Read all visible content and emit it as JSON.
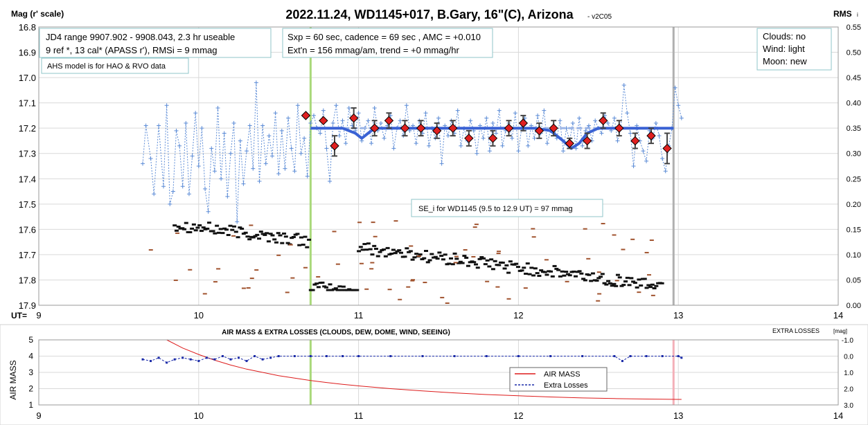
{
  "top": {
    "title": "2022.11.24, WD1145+017, B.Gary, 16\"(C), Arizona",
    "version": "- v2C05",
    "y_left_label": "Mag (r' scale)",
    "y_right_label": "RMS",
    "y_right_label_sub": "i",
    "x_prefix": "UT=",
    "annot1_l1": "JD4 range 9907.902 - 9908.043, 2.3 hr useable",
    "annot1_l2": " 9 ref *, 13 cal*  (APASS r'), RMSi = 9 mmag",
    "annot2": "AHS model is for HAO & RVO data",
    "annot3_l1": "Sxp = 60 sec, cadence = 69 sec , AMC = +0.010",
    "annot3_l2": "Ext'n = 156 mmag/am, trend = +0 mmag/hr",
    "annot4_l1": "Clouds: no",
    "annot4_l2": "Wind:  light",
    "annot4_l3": "Moon:  new",
    "annot5": "SE_i for WD1145 (9.5 to 12.9 UT) = 97 mmag"
  },
  "bottom": {
    "title": "AIR MASS & EXTRA LOSSES (CLOUDS, DEW, DOME, WIND, SEEING)",
    "y_left_label": "AIR MASS",
    "y_right_label": "EXTRA LOSSES",
    "y_right_unit": "[mag]",
    "legend": [
      "AIR MASS",
      "Extra Losses"
    ]
  },
  "colors": {
    "mag": "#5b8bd6",
    "binned": "#e02020",
    "model": "#3a62d4",
    "rms_black": "#111111",
    "rms_brown": "#a0522d",
    "ingress_line": "#a9d97a",
    "egress_line": "#b0b0b0",
    "airmass": "#dd1a1a",
    "losses": "#1a2aa8"
  },
  "chart_data": [
    {
      "type": "scatter",
      "title": "2022.11.24, WD1145+017, B.Gary, 16\"(C), Arizona",
      "xlabel": "UT=",
      "ylabel": "Mag (r' scale)",
      "y2label": "RMS i",
      "xlim": [
        9,
        14
      ],
      "ylim": [
        17.9,
        16.8
      ],
      "y2lim": [
        0,
        0.55
      ],
      "x_ticks": [
        9,
        10,
        11,
        12,
        13,
        14
      ],
      "y_ticks": [
        "16.8",
        "16.9",
        "17.0",
        "17.1",
        "17.2",
        "17.3",
        "17.4",
        "17.5",
        "17.6",
        "17.7",
        "17.8",
        "17.9"
      ],
      "y2_ticks": [
        "0.55",
        "0.50",
        "0.45",
        "0.40",
        "0.35",
        "0.30",
        "0.25",
        "0.20",
        "0.15",
        "0.10",
        "0.05",
        "0.00"
      ],
      "vertical_lines": [
        10.7,
        12.97
      ],
      "series": [
        {
          "name": "",
          "x": [
            9.65,
            9.67,
            9.7,
            9.72,
            9.75,
            9.78,
            9.8,
            9.82,
            9.84,
            9.86,
            9.88,
            9.9,
            9.92,
            9.94,
            9.96,
            9.98,
            10.0,
            10.02,
            10.04,
            10.06,
            10.08,
            10.1,
            10.12,
            10.14,
            10.16,
            10.18,
            10.2,
            10.22,
            10.24,
            10.26,
            10.28,
            10.3,
            10.32,
            10.34,
            10.36,
            10.38,
            10.4,
            10.42,
            10.44,
            10.46,
            10.48,
            10.5,
            10.52,
            10.54,
            10.56,
            10.58,
            10.6,
            10.62,
            10.64,
            10.66,
            10.68,
            10.7,
            10.72,
            10.74,
            10.76,
            10.78,
            10.8,
            10.82,
            10.84,
            10.86,
            10.88,
            10.9,
            10.92,
            10.94,
            10.96,
            10.98,
            11.0,
            11.02,
            11.04,
            11.06,
            11.08,
            11.1,
            11.12,
            11.14,
            11.16,
            11.18,
            11.2,
            11.22,
            11.24,
            11.26,
            11.28,
            11.3,
            11.32,
            11.34,
            11.36,
            11.38,
            11.4,
            11.42,
            11.44,
            11.46,
            11.48,
            11.5,
            11.52,
            11.54,
            11.56,
            11.58,
            11.6,
            11.62,
            11.64,
            11.66,
            11.68,
            11.7,
            11.72,
            11.74,
            11.76,
            11.78,
            11.8,
            11.82,
            11.84,
            11.86,
            11.88,
            11.9,
            11.92,
            11.94,
            11.96,
            11.98,
            12.0,
            12.02,
            12.04,
            12.06,
            12.08,
            12.1,
            12.12,
            12.14,
            12.16,
            12.18,
            12.2,
            12.22,
            12.24,
            12.26,
            12.28,
            12.3,
            12.32,
            12.34,
            12.36,
            12.38,
            12.4,
            12.42,
            12.44,
            12.46,
            12.48,
            12.5,
            12.52,
            12.54,
            12.56,
            12.58,
            12.6,
            12.62,
            12.64,
            12.66,
            12.68,
            12.7,
            12.72,
            12.74,
            12.76,
            12.78,
            12.8,
            12.82,
            12.84,
            12.86,
            12.88,
            12.9,
            12.92,
            12.94,
            12.96,
            12.98,
            13.0,
            13.02
          ],
          "y": [
            17.34,
            17.19,
            17.32,
            17.46,
            17.19,
            17.43,
            17.11,
            17.5,
            17.45,
            17.21,
            17.27,
            17.43,
            17.18,
            17.46,
            17.31,
            17.14,
            17.35,
            17.2,
            17.44,
            17.53,
            17.28,
            17.37,
            17.12,
            17.4,
            17.22,
            17.47,
            17.3,
            17.18,
            17.57,
            17.25,
            17.42,
            17.29,
            17.19,
            17.36,
            17.02,
            17.41,
            17.19,
            17.34,
            17.23,
            17.31,
            17.14,
            17.38,
            17.21,
            17.36,
            17.16,
            17.28,
            17.37,
            17.11,
            17.3,
            17.24,
            17.39,
            17.18,
            17.15,
            17.2,
            17.22,
            17.13,
            17.28,
            17.41,
            17.18,
            17.11,
            17.23,
            17.17,
            17.26,
            17.12,
            17.19,
            17.21,
            17.14,
            17.25,
            17.2,
            17.17,
            17.26,
            17.12,
            17.21,
            17.18,
            17.24,
            17.19,
            17.15,
            17.28,
            17.2,
            17.17,
            17.23,
            17.11,
            17.21,
            17.19,
            17.26,
            17.17,
            17.22,
            17.14,
            17.27,
            17.2,
            17.24,
            17.16,
            17.34,
            17.19,
            17.23,
            17.17,
            17.22,
            17.13,
            17.27,
            17.2,
            17.25,
            17.17,
            17.21,
            17.3,
            17.19,
            17.24,
            17.16,
            17.29,
            17.18,
            17.22,
            17.13,
            17.27,
            17.21,
            17.18,
            17.24,
            17.14,
            17.29,
            17.2,
            17.16,
            17.27,
            17.19,
            17.24,
            17.15,
            17.22,
            17.13,
            17.26,
            17.21,
            17.19,
            17.24,
            17.17,
            17.29,
            17.2,
            17.25,
            17.18,
            17.28,
            17.16,
            17.27,
            17.21,
            17.19,
            17.25,
            17.17,
            17.2,
            17.22,
            17.15,
            17.18,
            17.21,
            17.16,
            17.25,
            17.2,
            17.03,
            17.14,
            17.22,
            17.35,
            17.19,
            17.25,
            17.29,
            17.33,
            17.21,
            17.24,
            17.18,
            17.23,
            17.32,
            17.37,
            17.27,
            17.2,
            17.04,
            17.11,
            17.16
          ]
        },
        {
          "name": "",
          "x": [
            10.67,
            10.78,
            10.85,
            10.97,
            11.1,
            11.19,
            11.29,
            11.39,
            11.49,
            11.59,
            11.69,
            11.84,
            11.94,
            12.03,
            12.13,
            12.22,
            12.32,
            12.43,
            12.53,
            12.63,
            12.73,
            12.83,
            12.93
          ],
          "y": [
            17.15,
            17.17,
            17.27,
            17.16,
            17.2,
            17.17,
            17.2,
            17.2,
            17.21,
            17.2,
            17.24,
            17.24,
            17.2,
            17.18,
            17.21,
            17.2,
            17.26,
            17.25,
            17.17,
            17.2,
            17.25,
            17.23,
            17.28
          ],
          "err": [
            0,
            0,
            0.04,
            0.04,
            0.03,
            0.03,
            0.03,
            0.03,
            0.03,
            0.03,
            0.03,
            0.03,
            0.03,
            0.03,
            0.03,
            0.03,
            0.02,
            0.03,
            0.03,
            0.03,
            0.03,
            0.03,
            0.06
          ]
        },
        {
          "name": "",
          "x": [
            10.7,
            10.8,
            10.9,
            10.98,
            11.02,
            11.06,
            11.1,
            11.2,
            11.5,
            11.8,
            12.1,
            12.2,
            12.28,
            12.33,
            12.38,
            12.43,
            12.5,
            12.6,
            12.7,
            12.97
          ],
          "y": [
            17.2,
            17.2,
            17.2,
            17.22,
            17.24,
            17.22,
            17.2,
            17.2,
            17.2,
            17.2,
            17.2,
            17.21,
            17.25,
            17.28,
            17.26,
            17.22,
            17.2,
            17.2,
            17.2,
            17.2
          ]
        }
      ]
    },
    {
      "type": "line",
      "title": "AIR MASS & EXTRA LOSSES (CLOUDS, DEW, DOME, WIND, SEEING)",
      "xlabel": "",
      "ylabel": "AIR MASS",
      "y2label": "EXTRA LOSSES [mag]",
      "xlim": [
        9,
        14
      ],
      "ylim": [
        1,
        5
      ],
      "y2lim": [
        3.0,
        -1.0
      ],
      "x_ticks": [
        9,
        10,
        11,
        12,
        13,
        14
      ],
      "y_ticks": [
        "5",
        "4",
        "3",
        "2",
        "1"
      ],
      "y2_ticks": [
        "-1.0",
        "0.0",
        "1.0",
        "2.0",
        "3.0"
      ],
      "vertical_lines": [
        10.7,
        12.97
      ],
      "series": [
        {
          "name": "AIR MASS",
          "x": [
            9.8,
            9.9,
            10.0,
            10.1,
            10.2,
            10.3,
            10.4,
            10.5,
            10.6,
            10.7,
            10.8,
            10.9,
            11.0,
            11.2,
            11.4,
            11.6,
            11.8,
            12.0,
            12.2,
            12.4,
            12.6,
            12.8,
            13.0,
            13.02
          ],
          "y": [
            5.0,
            4.5,
            4.1,
            3.75,
            3.45,
            3.2,
            3.0,
            2.8,
            2.65,
            2.5,
            2.38,
            2.27,
            2.17,
            2.0,
            1.86,
            1.74,
            1.64,
            1.56,
            1.49,
            1.43,
            1.39,
            1.36,
            1.34,
            1.34
          ]
        },
        {
          "name": "Extra Losses",
          "x": [
            9.65,
            9.7,
            9.75,
            9.8,
            9.85,
            9.9,
            9.95,
            10.0,
            10.05,
            10.1,
            10.15,
            10.2,
            10.25,
            10.3,
            10.35,
            10.4,
            10.45,
            10.5,
            10.6,
            10.7,
            10.8,
            10.9,
            11.0,
            11.2,
            11.4,
            11.6,
            11.8,
            12.0,
            12.2,
            12.4,
            12.6,
            12.65,
            12.7,
            12.8,
            12.9,
            13.0,
            13.02
          ],
          "y": [
            0.2,
            0.3,
            0.1,
            0.4,
            0.2,
            0.1,
            0.2,
            0.3,
            0.1,
            0.2,
            0.0,
            0.2,
            0.1,
            0.3,
            0.0,
            0.2,
            0.1,
            0.0,
            0.0,
            0.0,
            0.0,
            0.0,
            0.0,
            0.0,
            0.0,
            0.0,
            0.0,
            0.0,
            0.0,
            0.0,
            0.0,
            0.3,
            0.0,
            0.0,
            0.0,
            0.0,
            0.1
          ]
        }
      ]
    }
  ]
}
